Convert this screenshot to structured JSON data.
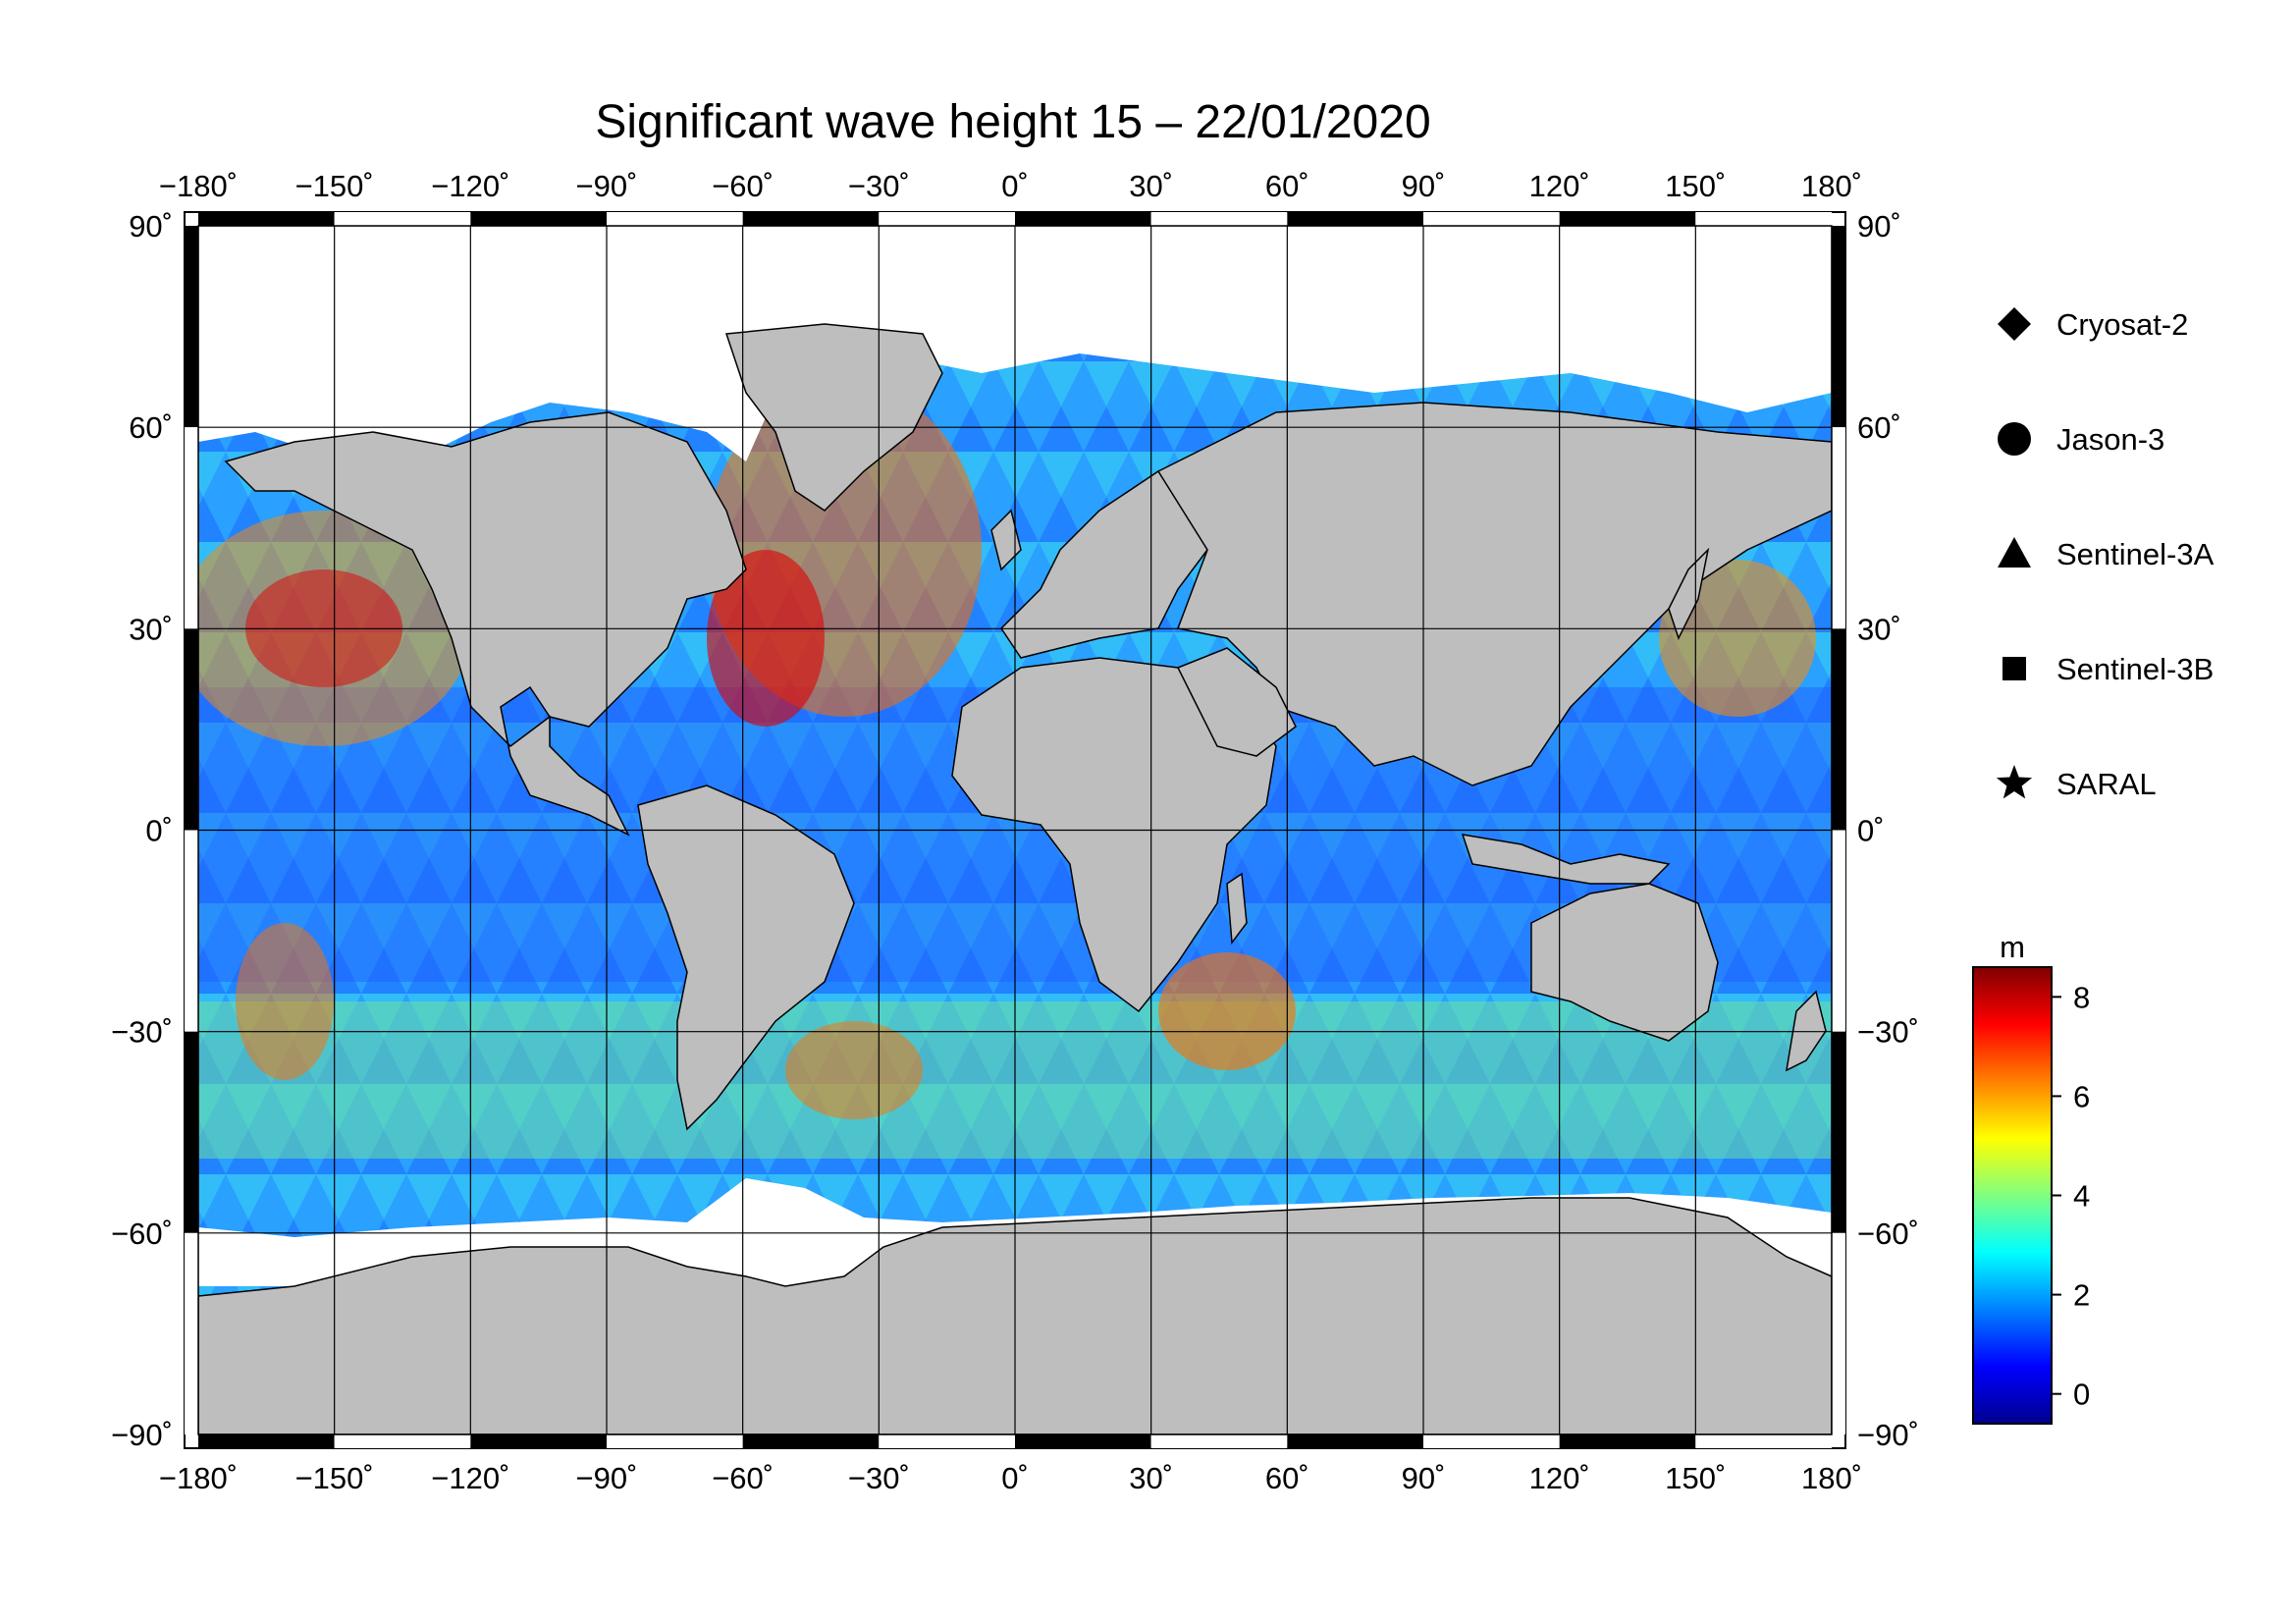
{
  "title": "Significant wave height 15 – 22/01/2020",
  "map": {
    "lon_ticks": [
      "−180˚",
      "−150˚",
      "−120˚",
      "−90˚",
      "−60˚",
      "−30˚",
      "0˚",
      "30˚",
      "60˚",
      "90˚",
      "120˚",
      "150˚",
      "180˚"
    ],
    "lat_ticks_left": [
      "90˚",
      "60˚",
      "30˚",
      "0˚",
      "−30˚",
      "−60˚",
      "−90˚"
    ],
    "lat_ticks_right": [
      "90˚",
      "60˚",
      "30˚",
      "0˚",
      "−30˚",
      "−60˚",
      "−90˚"
    ],
    "lon_values": [
      -180,
      -150,
      -120,
      -90,
      -60,
      -30,
      0,
      30,
      60,
      90,
      120,
      150,
      180
    ],
    "lat_values": [
      90,
      60,
      30,
      0,
      -30,
      -60,
      -90
    ],
    "land_color": "#bebebe",
    "ice_color": "#ffffff"
  },
  "legend": {
    "items": [
      {
        "label": "Cryosat-2",
        "symbol": "diamond"
      },
      {
        "label": "Jason-3",
        "symbol": "circle"
      },
      {
        "label": "Sentinel-3A",
        "symbol": "triangle"
      },
      {
        "label": "Sentinel-3B",
        "symbol": "square"
      },
      {
        "label": "SARAL",
        "symbol": "star"
      }
    ]
  },
  "colorbar": {
    "unit": "m",
    "ticks": [
      "8",
      "6",
      "4",
      "2",
      "0"
    ],
    "tick_values": [
      8,
      6,
      4,
      2,
      0
    ],
    "range": [
      -0.6,
      8.6
    ],
    "colors": [
      "#00008f",
      "#0000ff",
      "#0080ff",
      "#00ffff",
      "#80ff80",
      "#ffff00",
      "#ff8000",
      "#ff0000",
      "#800000"
    ]
  }
}
